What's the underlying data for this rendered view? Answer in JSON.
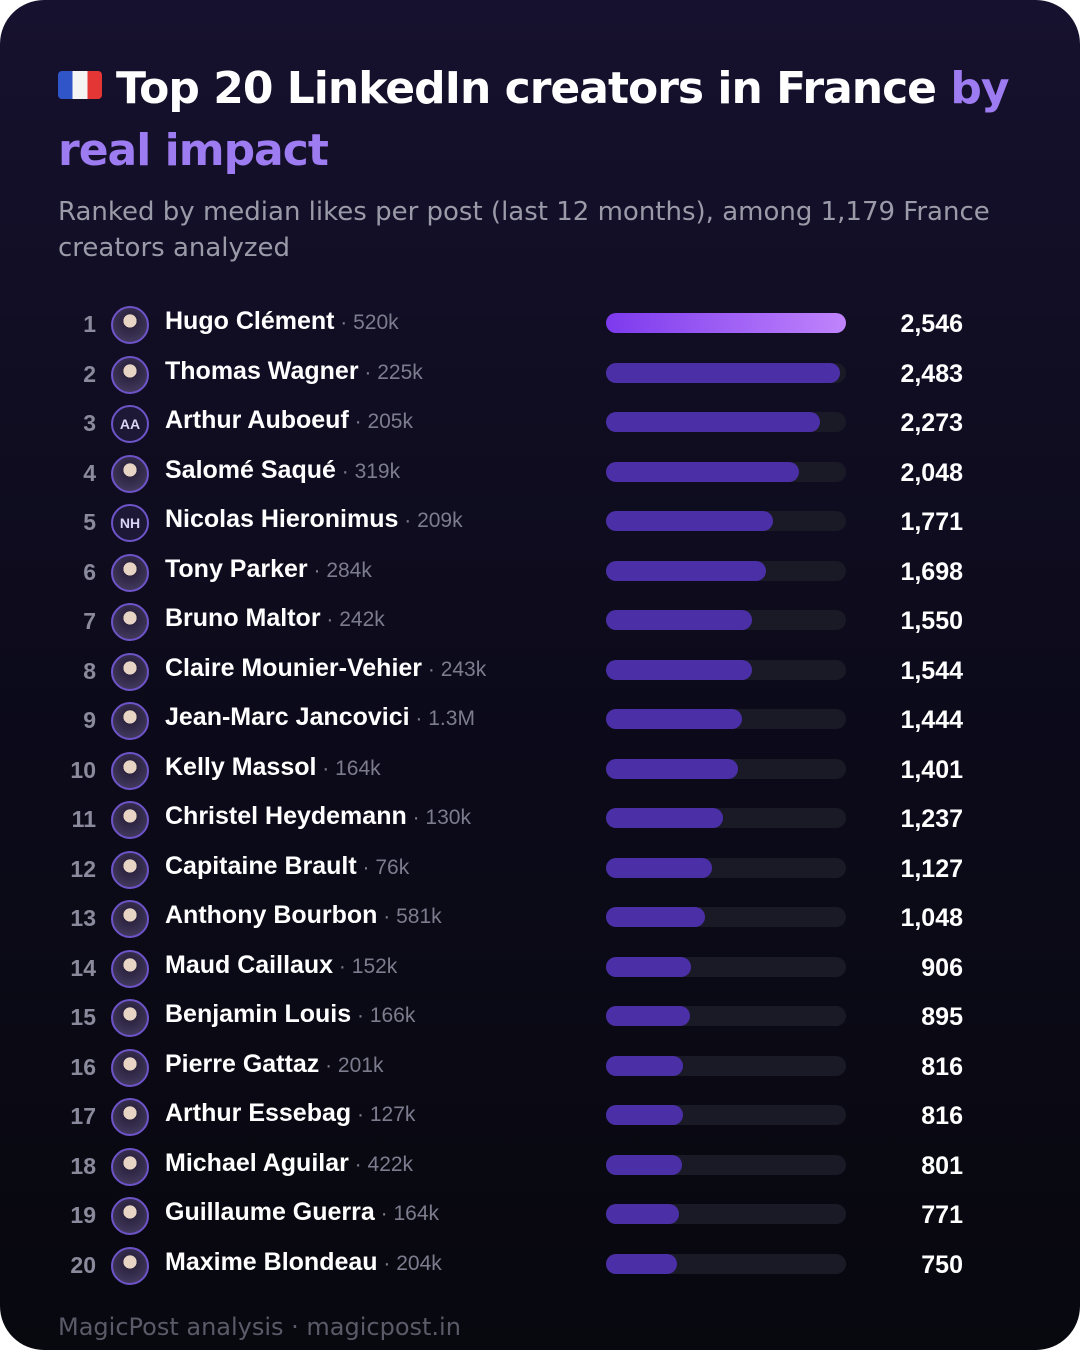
{
  "header": {
    "flag_icon": "france-flag-icon",
    "title_main": "Top 20 LinkedIn creators in France ",
    "title_accent": "by real impact",
    "subtitle": "Ranked by median likes per post (last 12 months), among 1,179 France creators analyzed"
  },
  "colors": {
    "background": "#0d0b1c",
    "accent": "#9d7bf0",
    "bar": "#4b2fa6",
    "top_bar_start": "#7c3aed",
    "top_bar_end": "#c084fc"
  },
  "chart_data": {
    "type": "bar",
    "orientation": "horizontal",
    "title": "Top 20 LinkedIn creators in France by real impact",
    "xlim": [
      0,
      2546
    ],
    "rows": [
      {
        "rank": "1",
        "name": "Hugo Clément",
        "followers": "520k",
        "value": 2546,
        "value_label": "2,546",
        "avatar": "photo"
      },
      {
        "rank": "2",
        "name": "Thomas Wagner",
        "followers": "225k",
        "value": 2483,
        "value_label": "2,483",
        "avatar": "photo"
      },
      {
        "rank": "3",
        "name": "Arthur Auboeuf",
        "followers": "205k",
        "value": 2273,
        "value_label": "2,273",
        "avatar": "AA"
      },
      {
        "rank": "4",
        "name": "Salomé Saqué",
        "followers": "319k",
        "value": 2048,
        "value_label": "2,048",
        "avatar": "photo"
      },
      {
        "rank": "5",
        "name": "Nicolas Hieronimus",
        "followers": "209k",
        "value": 1771,
        "value_label": "1,771",
        "avatar": "NH"
      },
      {
        "rank": "6",
        "name": "Tony Parker",
        "followers": "284k",
        "value": 1698,
        "value_label": "1,698",
        "avatar": "photo"
      },
      {
        "rank": "7",
        "name": "Bruno Maltor",
        "followers": "242k",
        "value": 1550,
        "value_label": "1,550",
        "avatar": "photo"
      },
      {
        "rank": "8",
        "name": "Claire Mounier-Vehier",
        "followers": "243k",
        "value": 1544,
        "value_label": "1,544",
        "avatar": "photo"
      },
      {
        "rank": "9",
        "name": "Jean-Marc Jancovici",
        "followers": "1.3M",
        "value": 1444,
        "value_label": "1,444",
        "avatar": "photo"
      },
      {
        "rank": "10",
        "name": "Kelly Massol",
        "followers": "164k",
        "value": 1401,
        "value_label": "1,401",
        "avatar": "photo"
      },
      {
        "rank": "11",
        "name": "Christel Heydemann",
        "followers": "130k",
        "value": 1237,
        "value_label": "1,237",
        "avatar": "photo"
      },
      {
        "rank": "12",
        "name": "Capitaine Brault",
        "followers": "76k",
        "value": 1127,
        "value_label": "1,127",
        "avatar": "photo"
      },
      {
        "rank": "13",
        "name": "Anthony Bourbon",
        "followers": "581k",
        "value": 1048,
        "value_label": "1,048",
        "avatar": "photo"
      },
      {
        "rank": "14",
        "name": "Maud Caillaux",
        "followers": "152k",
        "value": 906,
        "value_label": "906",
        "avatar": "photo"
      },
      {
        "rank": "15",
        "name": "Benjamin Louis",
        "followers": "166k",
        "value": 895,
        "value_label": "895",
        "avatar": "photo"
      },
      {
        "rank": "16",
        "name": "Pierre Gattaz",
        "followers": "201k",
        "value": 816,
        "value_label": "816",
        "avatar": "photo"
      },
      {
        "rank": "17",
        "name": "Arthur Essebag",
        "followers": "127k",
        "value": 816,
        "value_label": "816",
        "avatar": "photo"
      },
      {
        "rank": "18",
        "name": "Michael Aguilar",
        "followers": "422k",
        "value": 801,
        "value_label": "801",
        "avatar": "photo"
      },
      {
        "rank": "19",
        "name": "Guillaume Guerra",
        "followers": "164k",
        "value": 771,
        "value_label": "771",
        "avatar": "photo"
      },
      {
        "rank": "20",
        "name": "Maxime Blondeau",
        "followers": "204k",
        "value": 750,
        "value_label": "750",
        "avatar": "photo"
      }
    ]
  },
  "footer": {
    "text": "MagicPost analysis · magicpost.in"
  }
}
